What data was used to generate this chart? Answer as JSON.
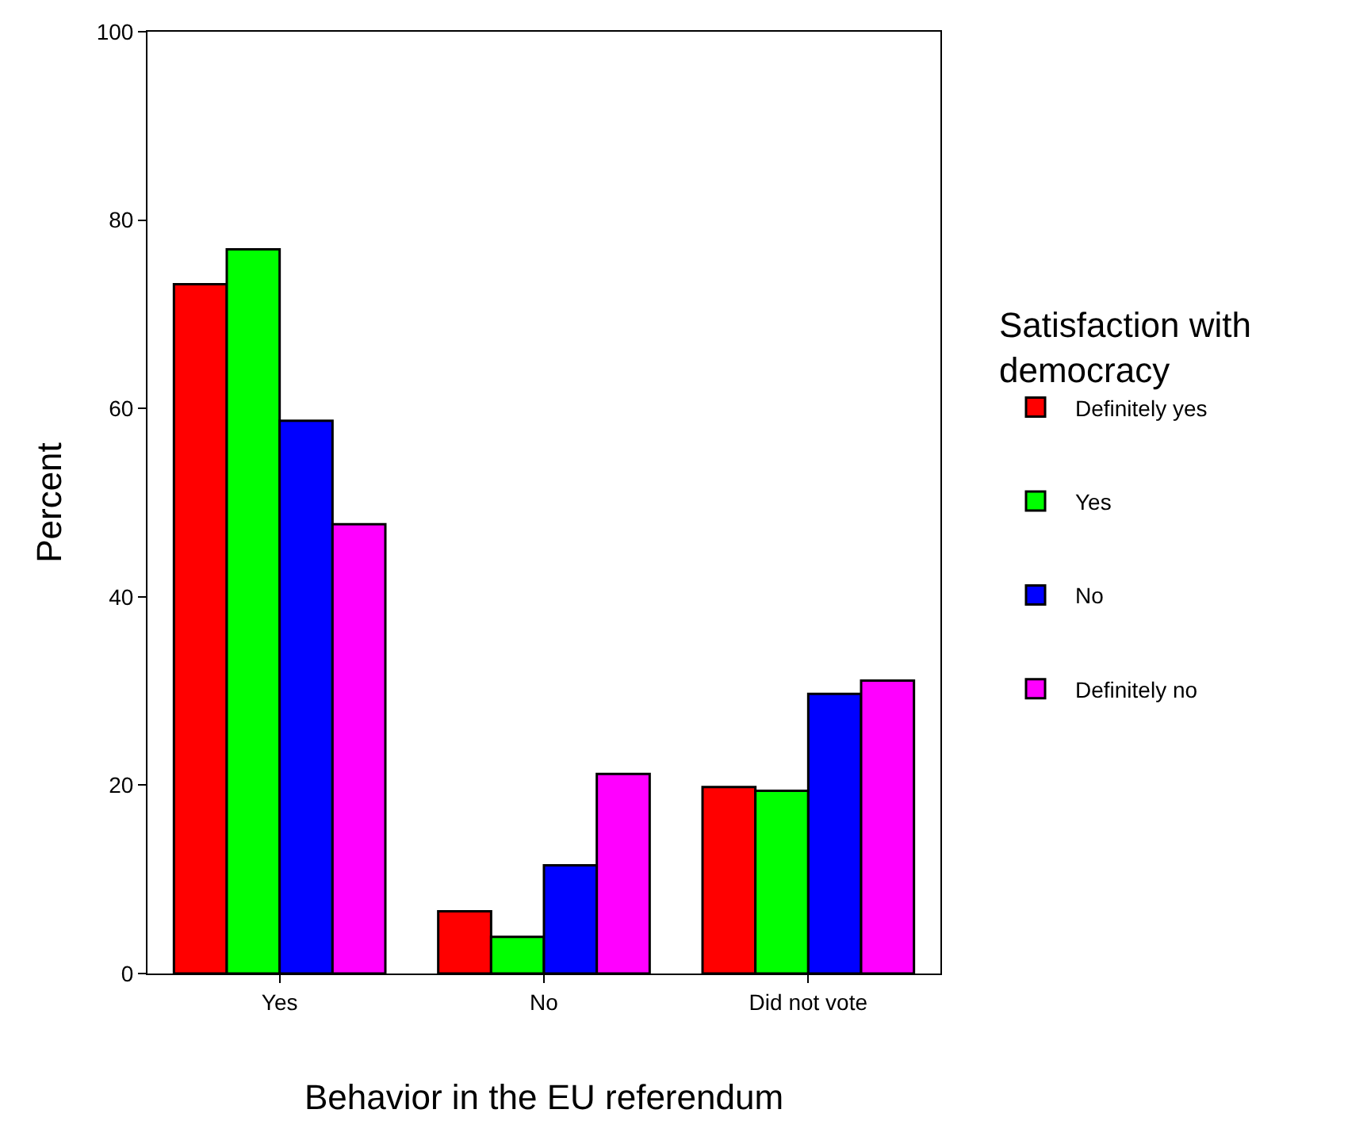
{
  "chart_data": {
    "type": "bar",
    "xlabel": "Behavior in the EU referendum",
    "ylabel": "Percent",
    "legend_title": "Satisfaction with democracy",
    "categories": [
      "Yes",
      "No",
      "Did not vote"
    ],
    "series": [
      {
        "name": "Definitely yes",
        "color": "#ff0000",
        "values": [
          73.2,
          6.6,
          19.8
        ]
      },
      {
        "name": "Yes",
        "color": "#00ff00",
        "values": [
          76.9,
          3.9,
          19.4
        ]
      },
      {
        "name": "No",
        "color": "#0000ff",
        "values": [
          58.7,
          11.5,
          29.7
        ]
      },
      {
        "name": "Definitely no",
        "color": "#ff00ff",
        "values": [
          47.7,
          21.2,
          31.1
        ]
      }
    ],
    "ylim": [
      0,
      100
    ],
    "yticks": [
      0,
      20,
      40,
      60,
      80,
      100
    ],
    "legend": "right"
  }
}
